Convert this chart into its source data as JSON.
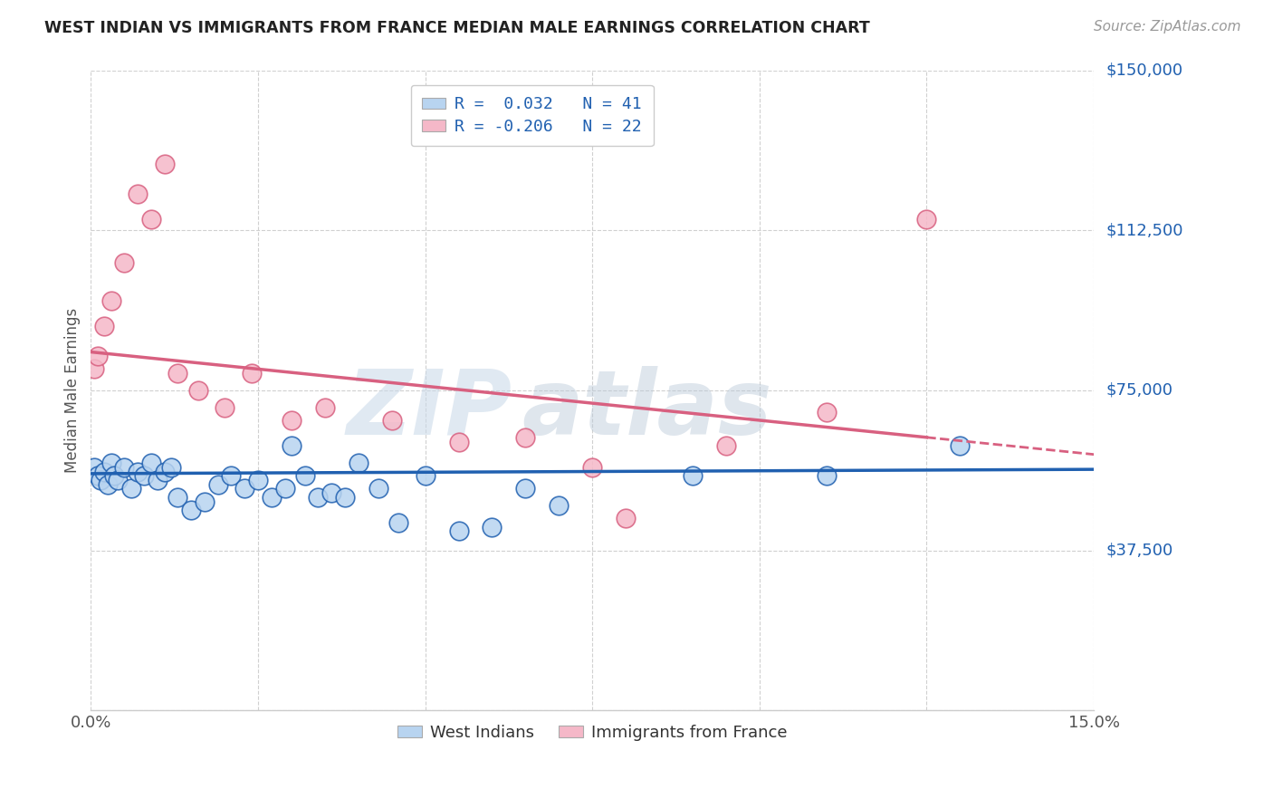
{
  "title": "WEST INDIAN VS IMMIGRANTS FROM FRANCE MEDIAN MALE EARNINGS CORRELATION CHART",
  "source": "Source: ZipAtlas.com",
  "ylabel": "Median Male Earnings",
  "yticks": [
    0,
    37500,
    75000,
    112500,
    150000
  ],
  "ytick_labels": [
    "",
    "$37,500",
    "$75,000",
    "$112,500",
    "$150,000"
  ],
  "xmin": 0.0,
  "xmax": 15.0,
  "ymin": 0,
  "ymax": 150000,
  "blue_label": "West Indians",
  "pink_label": "Immigrants from France",
  "blue_R": "0.032",
  "blue_N": "41",
  "pink_R": "-0.206",
  "pink_N": "22",
  "blue_color": "#b8d4f0",
  "pink_color": "#f5b8c8",
  "blue_line_color": "#2060b0",
  "pink_line_color": "#d86080",
  "watermark_text": "ZIP",
  "watermark_text2": "atlas",
  "blue_scatter_x": [
    0.05,
    0.1,
    0.15,
    0.2,
    0.25,
    0.3,
    0.35,
    0.4,
    0.5,
    0.6,
    0.7,
    0.8,
    0.9,
    1.0,
    1.1,
    1.2,
    1.3,
    1.5,
    1.7,
    1.9,
    2.1,
    2.3,
    2.5,
    2.7,
    2.9,
    3.0,
    3.2,
    3.4,
    3.6,
    3.8,
    4.0,
    4.3,
    4.6,
    5.0,
    5.5,
    6.0,
    6.5,
    7.0,
    9.0,
    11.0,
    13.0
  ],
  "blue_scatter_y": [
    57000,
    55000,
    54000,
    56000,
    53000,
    58000,
    55000,
    54000,
    57000,
    52000,
    56000,
    55000,
    58000,
    54000,
    56000,
    57000,
    50000,
    47000,
    49000,
    53000,
    55000,
    52000,
    54000,
    50000,
    52000,
    62000,
    55000,
    50000,
    51000,
    50000,
    58000,
    52000,
    44000,
    55000,
    42000,
    43000,
    52000,
    48000,
    55000,
    55000,
    62000
  ],
  "pink_scatter_x": [
    0.05,
    0.1,
    0.2,
    0.3,
    0.5,
    0.7,
    0.9,
    1.1,
    1.3,
    1.6,
    2.0,
    2.4,
    3.0,
    3.5,
    4.5,
    5.5,
    6.5,
    7.5,
    8.0,
    9.5,
    11.0,
    12.5
  ],
  "pink_scatter_y": [
    80000,
    83000,
    90000,
    96000,
    105000,
    121000,
    115000,
    128000,
    79000,
    75000,
    71000,
    79000,
    68000,
    71000,
    68000,
    63000,
    64000,
    57000,
    45000,
    62000,
    70000,
    115000
  ],
  "blue_line_y_at_0": 55500,
  "blue_line_y_at_15": 56500,
  "pink_line_y_at_0": 84000,
  "pink_line_y_at_15": 60000,
  "pink_solid_end_x": 12.5
}
